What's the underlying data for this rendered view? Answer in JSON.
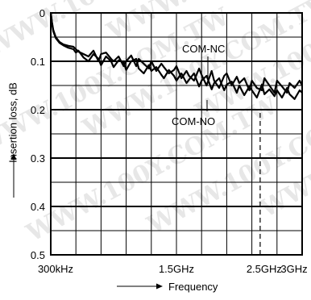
{
  "chart_data": {
    "type": "line",
    "title": "",
    "xlabel": "Frequency",
    "ylabel": "Insertion loss, dB",
    "ylim": [
      0,
      0.5
    ],
    "y_inverted": true,
    "grid": true,
    "yticks": [
      0,
      0.1,
      0.2,
      0.3,
      0.4,
      0.5
    ],
    "ytick_labels": [
      "0",
      "0.1",
      "0.2",
      "0.3",
      "0.4",
      "0.5"
    ],
    "x_scale": "nonlinear (10 grid divisions)",
    "xticks": [
      {
        "label": "300kHz",
        "div": 0
      },
      {
        "label": "1.5GHz",
        "div": 5
      },
      {
        "label": "2.5GHz",
        "div": 8.33
      },
      {
        "label": "3GHz",
        "div": 10
      }
    ],
    "marker_line": {
      "label": "2.5GHz",
      "div": 8.33
    },
    "annotations": [
      "COM-NC",
      "COM-NO"
    ],
    "watermark": "WWW.100Y.COM.TW",
    "series": [
      {
        "name": "COM-NC",
        "color": "#000000",
        "x_div": [
          0,
          0.05,
          0.1,
          0.2,
          0.35,
          0.5,
          0.7,
          0.9,
          1.0,
          1.1,
          1.3,
          1.5,
          1.7,
          1.9,
          2.0,
          2.2,
          2.4,
          2.5,
          2.7,
          2.9,
          3.0,
          3.2,
          3.4,
          3.5,
          3.7,
          3.9,
          4.0,
          4.2,
          4.4,
          4.5,
          4.7,
          4.9,
          5.0,
          5.2,
          5.4,
          5.5,
          5.7,
          5.9,
          6.0,
          6.2,
          6.4,
          6.5,
          6.7,
          6.9,
          7.0,
          7.2,
          7.4,
          7.5,
          7.7,
          7.9,
          8.0,
          8.2,
          8.4,
          8.5,
          8.7,
          8.9,
          9.0,
          9.2,
          9.4,
          9.5,
          9.7,
          9.9,
          10.0
        ],
        "values": [
          0.0,
          0.02,
          0.035,
          0.05,
          0.06,
          0.065,
          0.068,
          0.07,
          0.075,
          0.08,
          0.085,
          0.09,
          0.078,
          0.1,
          0.085,
          0.082,
          0.095,
          0.1,
          0.09,
          0.11,
          0.1,
          0.088,
          0.11,
          0.095,
          0.105,
          0.115,
          0.1,
          0.12,
          0.105,
          0.112,
          0.125,
          0.118,
          0.11,
          0.135,
          0.12,
          0.13,
          0.14,
          0.115,
          0.128,
          0.15,
          0.12,
          0.14,
          0.155,
          0.13,
          0.125,
          0.15,
          0.132,
          0.145,
          0.135,
          0.16,
          0.14,
          0.155,
          0.16,
          0.135,
          0.15,
          0.165,
          0.14,
          0.152,
          0.165,
          0.145,
          0.155,
          0.14,
          0.15
        ]
      },
      {
        "name": "COM-NO",
        "color": "#000000",
        "x_div": [
          0,
          0.05,
          0.1,
          0.2,
          0.35,
          0.5,
          0.7,
          0.9,
          1.0,
          1.1,
          1.3,
          1.5,
          1.7,
          1.9,
          2.0,
          2.2,
          2.4,
          2.5,
          2.7,
          2.9,
          3.0,
          3.2,
          3.4,
          3.5,
          3.7,
          3.9,
          4.0,
          4.2,
          4.4,
          4.5,
          4.7,
          4.9,
          5.0,
          5.2,
          5.4,
          5.5,
          5.7,
          5.9,
          6.0,
          6.2,
          6.4,
          6.5,
          6.7,
          6.9,
          7.0,
          7.2,
          7.4,
          7.5,
          7.7,
          7.9,
          8.0,
          8.2,
          8.4,
          8.5,
          8.7,
          8.9,
          9.0,
          9.2,
          9.4,
          9.5,
          9.7,
          9.9,
          10.0
        ],
        "values": [
          0.0,
          0.022,
          0.038,
          0.052,
          0.062,
          0.067,
          0.072,
          0.075,
          0.082,
          0.078,
          0.092,
          0.1,
          0.085,
          0.095,
          0.108,
          0.09,
          0.1,
          0.112,
          0.098,
          0.102,
          0.118,
          0.1,
          0.095,
          0.115,
          0.125,
          0.108,
          0.12,
          0.112,
          0.128,
          0.135,
          0.118,
          0.13,
          0.14,
          0.125,
          0.145,
          0.138,
          0.125,
          0.152,
          0.14,
          0.13,
          0.158,
          0.145,
          0.135,
          0.16,
          0.148,
          0.142,
          0.165,
          0.15,
          0.17,
          0.152,
          0.16,
          0.175,
          0.148,
          0.168,
          0.158,
          0.172,
          0.16,
          0.175,
          0.155,
          0.168,
          0.178,
          0.16,
          0.165
        ]
      }
    ]
  }
}
